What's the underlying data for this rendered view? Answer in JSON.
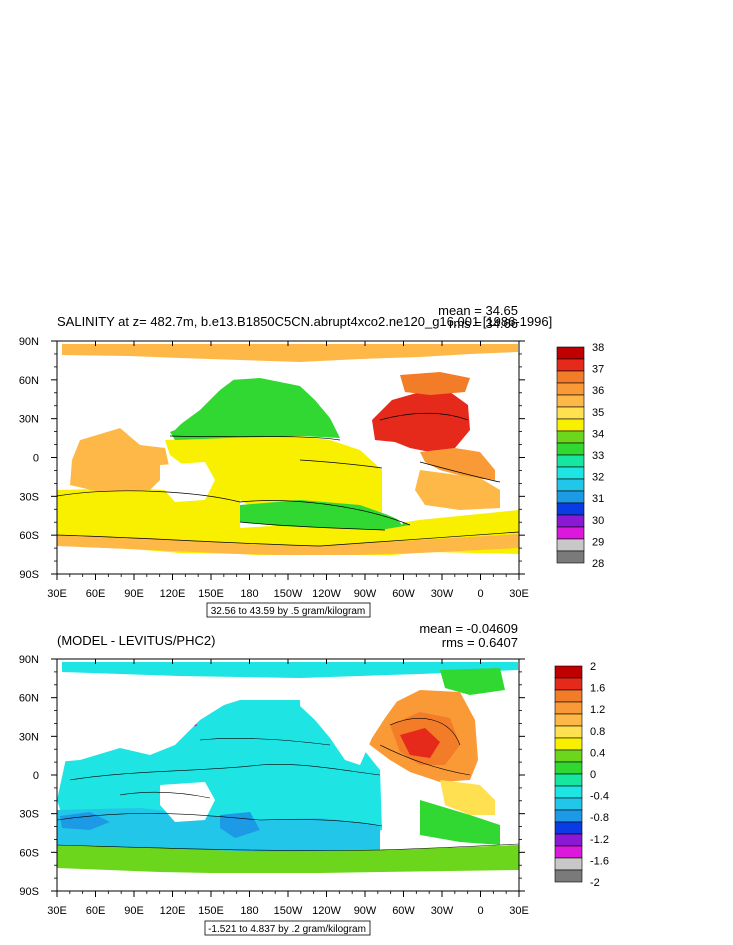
{
  "colors": {
    "ocean_fill": "#f0f0f0",
    "land": "#ffffff",
    "frame": "#000000"
  },
  "chart_data": [
    {
      "type": "heatmap",
      "title": "SALINITY at z= 482.7m, b.e13.B1850C5CN.abrupt4xco2.ne120_g16.001 [1986-1996]",
      "stats": {
        "mean": "mean = 34.65",
        "rms": "rms = 34.66"
      },
      "range_label": "32.56 to 43.59 by .5 gram/kilogram",
      "x_ticks": [
        "30E",
        "60E",
        "90E",
        "120E",
        "150E",
        "180",
        "150W",
        "120W",
        "90W",
        "60W",
        "30W",
        "0",
        "30E"
      ],
      "y_ticks": [
        "90N",
        "60N",
        "30N",
        "0",
        "30S",
        "60S",
        "90S"
      ],
      "colorbar": {
        "labels": [
          "38",
          "37",
          "36",
          "35",
          "34",
          "33",
          "32",
          "31",
          "30",
          "29",
          "28"
        ],
        "colors": [
          "#c00000",
          "#e52a1c",
          "#f37c28",
          "#f99a36",
          "#fdb848",
          "#fee050",
          "#f9f000",
          "#6cd61c",
          "#32d832",
          "#16e6a0",
          "#1ee4e4",
          "#22c6e8",
          "#1c9ae6",
          "#0a3ce6",
          "#8a18d4",
          "#dc18dc",
          "#c8c8c8",
          "#7a7a7a"
        ]
      }
    },
    {
      "type": "heatmap",
      "title": "(MODEL - LEVITUS/PHC2)",
      "stats": {
        "mean": "mean = -0.04609",
        "rms": "rms = 0.6407"
      },
      "range_label": "-1.521 to 4.837 by .2 gram/kilogram",
      "x_ticks": [
        "30E",
        "60E",
        "90E",
        "120E",
        "150E",
        "180",
        "150W",
        "120W",
        "90W",
        "60W",
        "30W",
        "0",
        "30E"
      ],
      "y_ticks": [
        "90N",
        "60N",
        "30N",
        "0",
        "30S",
        "60S",
        "90S"
      ],
      "colorbar": {
        "labels": [
          "2",
          "1.6",
          "1.2",
          "0.8",
          "0.4",
          "0",
          "-0.4",
          "-0.8",
          "-1.2",
          "-1.6",
          "-2"
        ],
        "colors": [
          "#c00000",
          "#e52a1c",
          "#f37c28",
          "#f99a36",
          "#fdb848",
          "#fee050",
          "#f9f000",
          "#6cd61c",
          "#32d832",
          "#16e6a0",
          "#1ee4e4",
          "#22c6e8",
          "#1c9ae6",
          "#0a3ce6",
          "#8a18d4",
          "#dc18dc",
          "#c8c8c8",
          "#7a7a7a"
        ]
      }
    }
  ]
}
